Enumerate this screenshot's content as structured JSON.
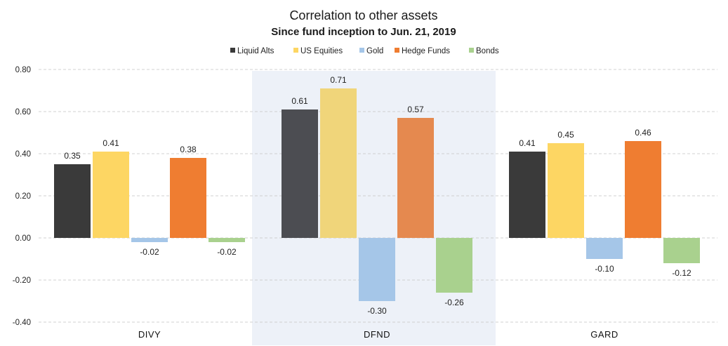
{
  "chart_data": {
    "type": "bar",
    "title": "Correlation to other assets",
    "subtitle": "Since fund inception to Jun. 21, 2019",
    "categories": [
      "DIVY",
      "DFND",
      "GARD"
    ],
    "highlighted_category": "DFND",
    "series": [
      {
        "name": "Liquid Alts",
        "color": "#3a3a3a",
        "values": [
          0.35,
          0.61,
          0.41
        ]
      },
      {
        "name": "US Equities",
        "color": "#fdd663",
        "values": [
          0.41,
          0.71,
          0.45
        ]
      },
      {
        "name": "Gold",
        "color": "#a5c6e8",
        "values": [
          -0.02,
          -0.3,
          -0.1
        ]
      },
      {
        "name": "Hedge Funds",
        "color": "#ef7d31",
        "values": [
          0.38,
          0.57,
          0.46
        ]
      },
      {
        "name": "Bonds",
        "color": "#a9d18e",
        "values": [
          -0.02,
          -0.26,
          -0.12
        ]
      }
    ],
    "data_labels": [
      [
        "0.35",
        "0.41",
        "-0.02",
        "0.38",
        "-0.02"
      ],
      [
        "0.61",
        "0.71",
        "-0.30",
        "0.57",
        "-0.26"
      ],
      [
        "0.41",
        "0.45",
        "-0.10",
        "0.46",
        "-0.12"
      ]
    ],
    "y_ticks": [
      0.8,
      0.6,
      0.4,
      0.2,
      0.0,
      -0.2,
      -0.4
    ],
    "y_tick_labels": [
      "0.80",
      "0.60",
      "0.40",
      "0.20",
      "0.00",
      "-0.20",
      "-0.40"
    ],
    "ylim": [
      -0.4,
      0.8
    ],
    "grid": true,
    "legend_position": "top-center",
    "xlabel": "",
    "ylabel": ""
  }
}
